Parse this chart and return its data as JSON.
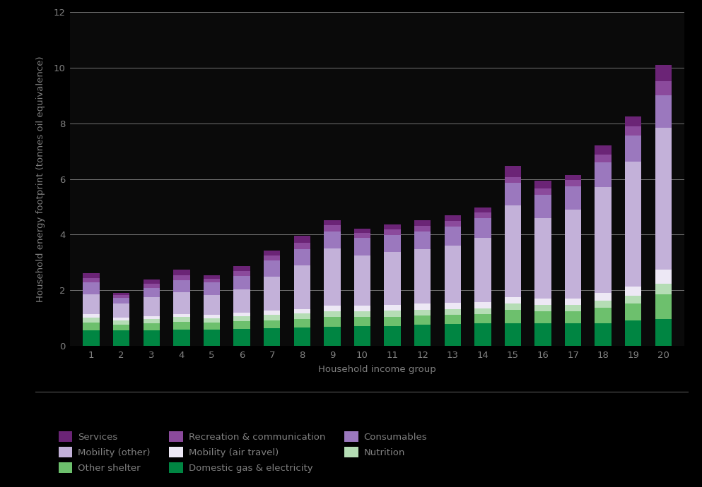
{
  "categories": [
    1,
    2,
    3,
    4,
    5,
    6,
    7,
    8,
    9,
    10,
    11,
    12,
    13,
    14,
    15,
    16,
    17,
    18,
    19,
    20
  ],
  "segments": {
    "Domestic gas & electricity": [
      0.55,
      0.55,
      0.55,
      0.58,
      0.58,
      0.6,
      0.62,
      0.65,
      0.68,
      0.7,
      0.72,
      0.75,
      0.78,
      0.8,
      0.8,
      0.8,
      0.8,
      0.82,
      0.9,
      0.95
    ],
    "Other shelter": [
      0.28,
      0.22,
      0.25,
      0.28,
      0.25,
      0.28,
      0.3,
      0.32,
      0.35,
      0.33,
      0.33,
      0.33,
      0.33,
      0.33,
      0.5,
      0.45,
      0.45,
      0.55,
      0.62,
      0.9
    ],
    "Nutrition": [
      0.18,
      0.14,
      0.16,
      0.17,
      0.17,
      0.18,
      0.2,
      0.2,
      0.22,
      0.22,
      0.22,
      0.22,
      0.22,
      0.22,
      0.22,
      0.22,
      0.22,
      0.25,
      0.28,
      0.38
    ],
    "Mobility (air travel)": [
      0.12,
      0.1,
      0.1,
      0.11,
      0.11,
      0.12,
      0.14,
      0.16,
      0.2,
      0.2,
      0.2,
      0.22,
      0.22,
      0.22,
      0.22,
      0.22,
      0.24,
      0.28,
      0.32,
      0.52
    ],
    "Mobility (other)": [
      0.72,
      0.52,
      0.68,
      0.78,
      0.72,
      0.85,
      1.22,
      1.55,
      2.05,
      1.8,
      1.9,
      1.95,
      2.05,
      2.3,
      3.3,
      2.9,
      3.2,
      3.8,
      4.5,
      5.1
    ],
    "Consumables": [
      0.42,
      0.2,
      0.35,
      0.45,
      0.45,
      0.48,
      0.58,
      0.6,
      0.62,
      0.62,
      0.62,
      0.65,
      0.68,
      0.72,
      0.82,
      0.85,
      0.82,
      0.9,
      0.95,
      1.15
    ],
    "Recreation & communication": [
      0.17,
      0.09,
      0.14,
      0.17,
      0.14,
      0.17,
      0.18,
      0.23,
      0.23,
      0.2,
      0.2,
      0.2,
      0.2,
      0.2,
      0.2,
      0.23,
      0.23,
      0.28,
      0.33,
      0.52
    ],
    "Services": [
      0.16,
      0.08,
      0.16,
      0.19,
      0.12,
      0.19,
      0.19,
      0.26,
      0.17,
      0.14,
      0.17,
      0.19,
      0.22,
      0.19,
      0.41,
      0.28,
      0.17,
      0.33,
      0.35,
      0.58
    ]
  },
  "colors": {
    "Domestic gas & electricity": "#008542",
    "Other shelter": "#6DC06D",
    "Nutrition": "#B5DDB5",
    "Mobility (air travel)": "#EDE8F5",
    "Mobility (other)": "#C3B1D9",
    "Consumables": "#9B78BE",
    "Recreation & communication": "#8B4A9C",
    "Services": "#6B2476"
  },
  "ylabel": "Household energy footprint (tonnes oil equivalence)",
  "xlabel": "Household income group",
  "ylim": [
    0,
    12
  ],
  "yticks": [
    0,
    2,
    4,
    6,
    8,
    10,
    12
  ],
  "background_color": "#000000",
  "plot_bg_color": "#0a0a0a",
  "text_color": "#808080",
  "grid_color": "#444444",
  "bar_width": 0.55
}
